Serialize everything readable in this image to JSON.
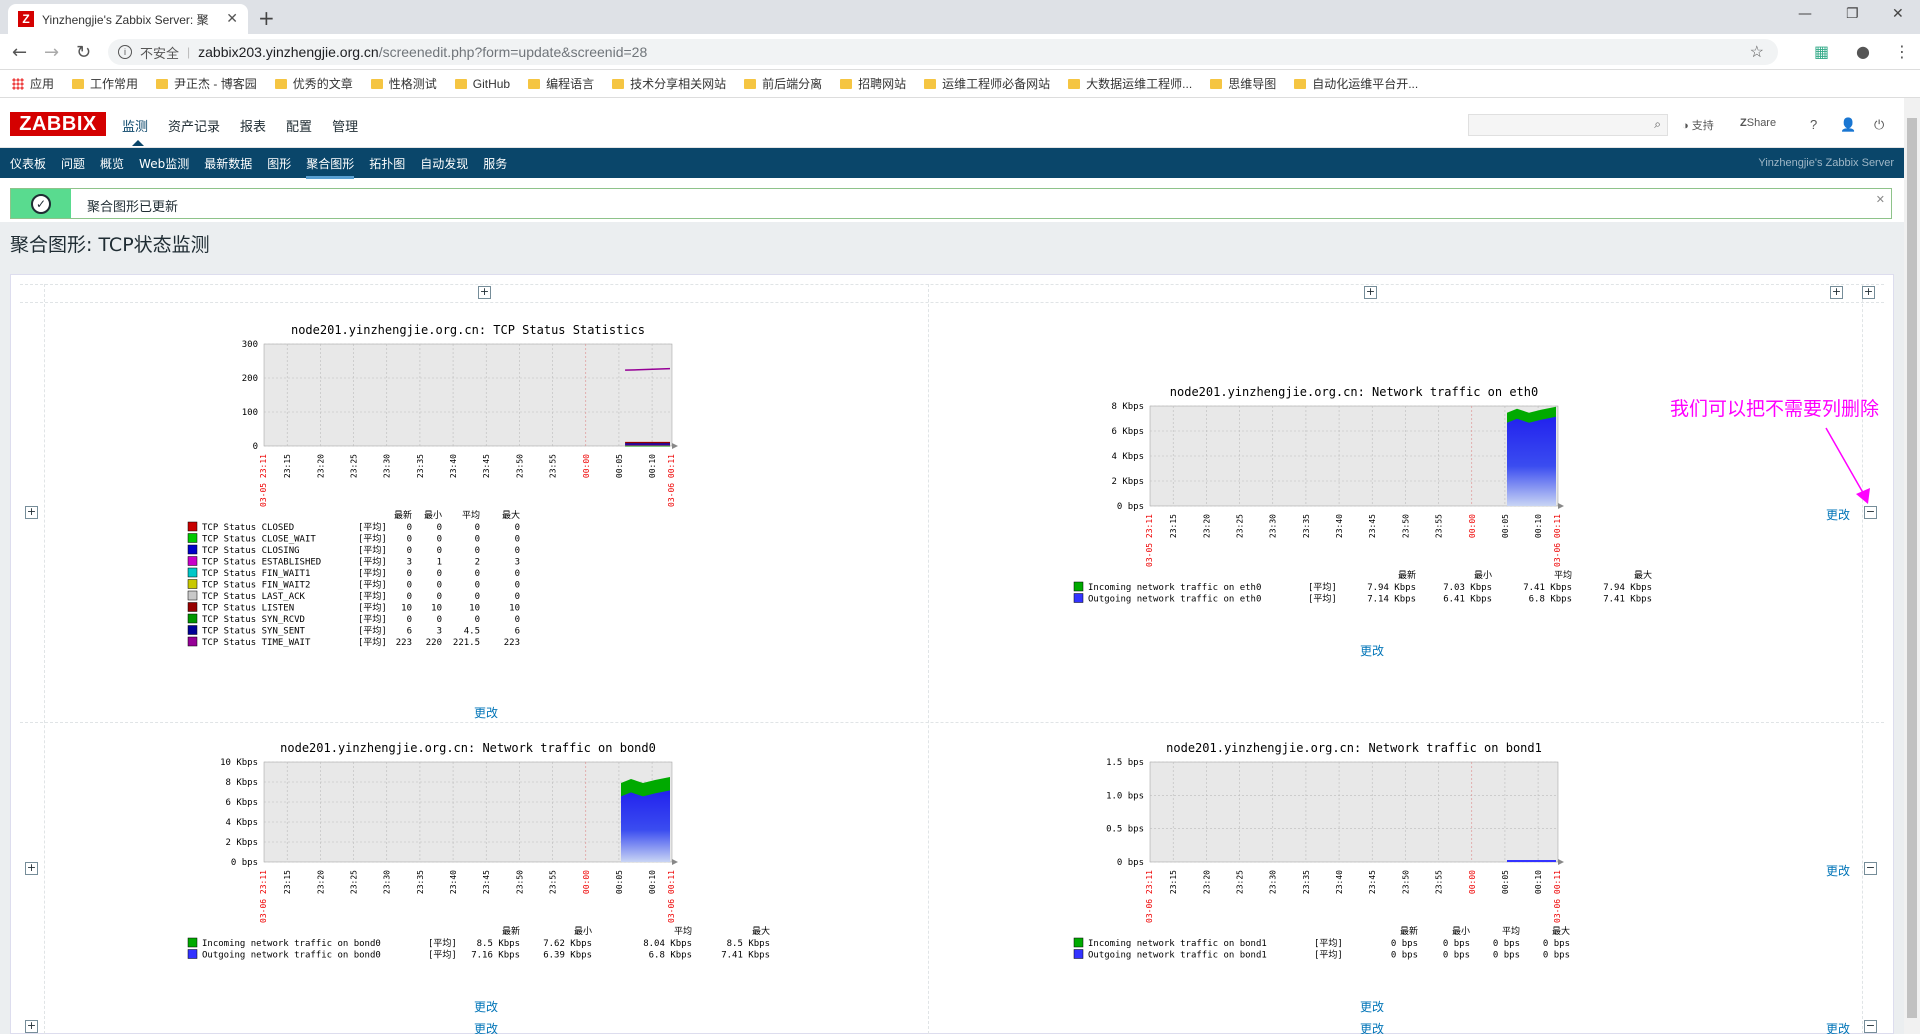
{
  "browser": {
    "tab_title": "Yinzhengjie's Zabbix Server: 聚",
    "insecure_label": "不安全",
    "url_host": "zabbix203.yinzhengjie.org.cn",
    "url_path": "/screenedit.php?form=update&screenid=28"
  },
  "bookmarks": [
    "应用",
    "工作常用",
    "尹正杰 - 博客园",
    "优秀的文章",
    "性格测试",
    "GitHub",
    "编程语言",
    "技术分享相关网站",
    "前后端分离",
    "招聘网站",
    "运维工程师必备网站",
    "大数据运维工程师...",
    "思维导图",
    "自动化运维平台开..."
  ],
  "zabbix": {
    "logo": "ZABBIX",
    "menu": [
      "监测",
      "资产记录",
      "报表",
      "配置",
      "管理"
    ],
    "support": "支持",
    "share": "Share",
    "help": "?",
    "subnav": [
      "仪表板",
      "问题",
      "概览",
      "Web监测",
      "最新数据",
      "图形",
      "聚合图形",
      "拓扑图",
      "自动发现",
      "服务"
    ],
    "server_name": "Yinzhengjie's Zabbix Server"
  },
  "message": "聚合图形已更新",
  "page_title": "聚合图形: TCP状态监测",
  "change_label": "更改",
  "annotation": "我们可以把不需要列删除",
  "legend_headers": [
    "最新",
    "最小",
    "平均",
    "最大"
  ],
  "avg_tag": "[平均]",
  "time_ticks": [
    "23:15",
    "23:20",
    "23:25",
    "23:30",
    "23:35",
    "23:40",
    "23:45",
    "23:50",
    "23:55",
    "00:00",
    "00:05",
    "00:10"
  ],
  "chart_data": [
    {
      "type": "line",
      "title": "node201.yinzhengjie.org.cn: TCP Status Statistics",
      "x_start": "03-05 23:11",
      "x_end": "03-06 00:11",
      "yticks": [
        "300",
        "200",
        "100",
        "0"
      ],
      "ylim": [
        0,
        300
      ],
      "series": [
        {
          "name": "TCP Status CLOSED",
          "color": "#c80000",
          "last": "0",
          "min": "0",
          "avg": "0",
          "max": "0"
        },
        {
          "name": "TCP Status CLOSE_WAIT",
          "color": "#00c800",
          "last": "0",
          "min": "0",
          "avg": "0",
          "max": "0"
        },
        {
          "name": "TCP Status CLOSING",
          "color": "#0000c8",
          "last": "0",
          "min": "0",
          "avg": "0",
          "max": "0"
        },
        {
          "name": "TCP Status ESTABLISHED",
          "color": "#c800c8",
          "last": "3",
          "min": "1",
          "avg": "2",
          "max": "3"
        },
        {
          "name": "TCP Status FIN_WAIT1",
          "color": "#00c8c8",
          "last": "0",
          "min": "0",
          "avg": "0",
          "max": "0"
        },
        {
          "name": "TCP Status FIN_WAIT2",
          "color": "#c8c800",
          "last": "0",
          "min": "0",
          "avg": "0",
          "max": "0"
        },
        {
          "name": "TCP Status LAST_ACK",
          "color": "#c8c8c8",
          "last": "0",
          "min": "0",
          "avg": "0",
          "max": "0"
        },
        {
          "name": "TCP Status LISTEN",
          "color": "#960000",
          "last": "10",
          "min": "10",
          "avg": "10",
          "max": "10"
        },
        {
          "name": "TCP Status SYN_RCVD",
          "color": "#009600",
          "last": "0",
          "min": "0",
          "avg": "0",
          "max": "0"
        },
        {
          "name": "TCP Status SYN_SENT",
          "color": "#000096",
          "last": "6",
          "min": "3",
          "avg": "4.5",
          "max": "6"
        },
        {
          "name": "TCP Status TIME_WAIT",
          "color": "#960096",
          "last": "223",
          "min": "220",
          "avg": "221.5",
          "max": "223"
        }
      ]
    },
    {
      "type": "area",
      "title": "node201.yinzhengjie.org.cn: Network traffic on eth0",
      "x_start": "03-05 23:11",
      "x_end": "03-06 00:11",
      "yticks": [
        "8 Kbps",
        "6 Kbps",
        "4 Kbps",
        "2 Kbps",
        "0 bps"
      ],
      "ylim": [
        0,
        8
      ],
      "series": [
        {
          "name": "Incoming network traffic on eth0",
          "color": "#00aa00",
          "last": "7.94 Kbps",
          "min": "7.03 Kbps",
          "avg": "7.41 Kbps",
          "max": "7.94 Kbps"
        },
        {
          "name": "Outgoing network traffic on eth0",
          "color": "#3333ff",
          "last": "7.14 Kbps",
          "min": "6.41 Kbps",
          "avg": "6.8 Kbps",
          "max": "7.41 Kbps"
        }
      ]
    },
    {
      "type": "area",
      "title": "node201.yinzhengjie.org.cn: Network traffic on bond0",
      "x_start": "03-06 23:11",
      "x_end": "03-06 00:11",
      "yticks": [
        "10 Kbps",
        "8 Kbps",
        "6 Kbps",
        "4 Kbps",
        "2 Kbps",
        "0 bps"
      ],
      "ylim": [
        0,
        10
      ],
      "series": [
        {
          "name": "Incoming network traffic on bond0",
          "color": "#00aa00",
          "last": "8.5 Kbps",
          "min": "7.62 Kbps",
          "avg": "8.04 Kbps",
          "max": "8.5 Kbps"
        },
        {
          "name": "Outgoing network traffic on bond0",
          "color": "#3333ff",
          "last": "7.16 Kbps",
          "min": "6.39 Kbps",
          "avg": "6.8 Kbps",
          "max": "7.41 Kbps"
        }
      ]
    },
    {
      "type": "area",
      "title": "node201.yinzhengjie.org.cn: Network traffic on bond1",
      "x_start": "03-06 23:11",
      "x_end": "03-06 00:11",
      "yticks": [
        "1.5 bps",
        "1.0 bps",
        "0.5 bps",
        "0 bps"
      ],
      "ylim": [
        0,
        1.5
      ],
      "series": [
        {
          "name": "Incoming network traffic on bond1",
          "color": "#00aa00",
          "last": "0 bps",
          "min": "0 bps",
          "avg": "0 bps",
          "max": "0 bps"
        },
        {
          "name": "Outgoing network traffic on bond1",
          "color": "#3333ff",
          "last": "0 bps",
          "min": "0 bps",
          "avg": "0 bps",
          "max": "0 bps"
        }
      ]
    }
  ]
}
